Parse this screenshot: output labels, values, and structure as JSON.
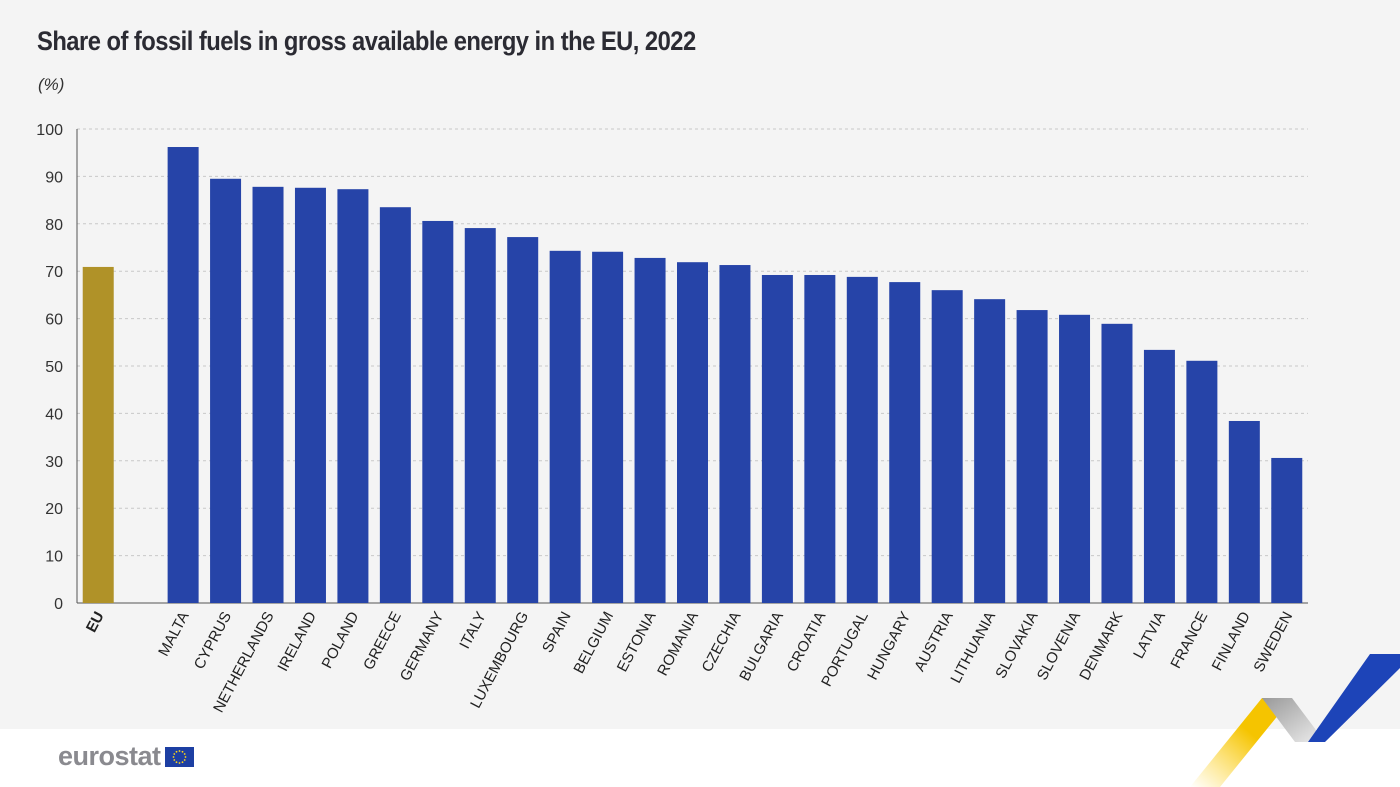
{
  "chart_data": {
    "type": "bar",
    "title": "Share of fossil fuels in gross available energy in the EU, 2022",
    "unit": "(%)",
    "xlabel": "",
    "ylabel": "",
    "ylim": [
      0,
      100
    ],
    "yticks": [
      0,
      10,
      20,
      30,
      40,
      50,
      60,
      70,
      80,
      90,
      100
    ],
    "grid": true,
    "categories": [
      "EU",
      "",
      "MALTA",
      "CYPRUS",
      "NETHERLANDS",
      "IRELAND",
      "POLAND",
      "GREECE",
      "GERMANY",
      "ITALY",
      "LUXEMBOURG",
      "SPAIN",
      "BELGIUM",
      "ESTONIA",
      "ROMANIA",
      "CZECHIA",
      "BULGARIA",
      "CROATIA",
      "PORTUGAL",
      "HUNGARY",
      "AUSTRIA",
      "LITHUANIA",
      "SLOVAKIA",
      "SLOVENIA",
      "DENMARK",
      "LATVIA",
      "FRANCE",
      "FINLAND",
      "SWEDEN"
    ],
    "values": [
      70.9,
      null,
      96.2,
      89.5,
      87.8,
      87.6,
      87.3,
      83.5,
      80.6,
      79.1,
      77.2,
      74.3,
      74.1,
      72.8,
      71.9,
      71.3,
      69.2,
      69.2,
      68.8,
      67.7,
      66.0,
      64.1,
      61.8,
      60.8,
      58.9,
      53.4,
      51.1,
      38.4,
      30.6
    ],
    "colors": {
      "eu": "#b09228",
      "country": "#2644a8"
    }
  },
  "logo": {
    "text": "eurostat"
  }
}
